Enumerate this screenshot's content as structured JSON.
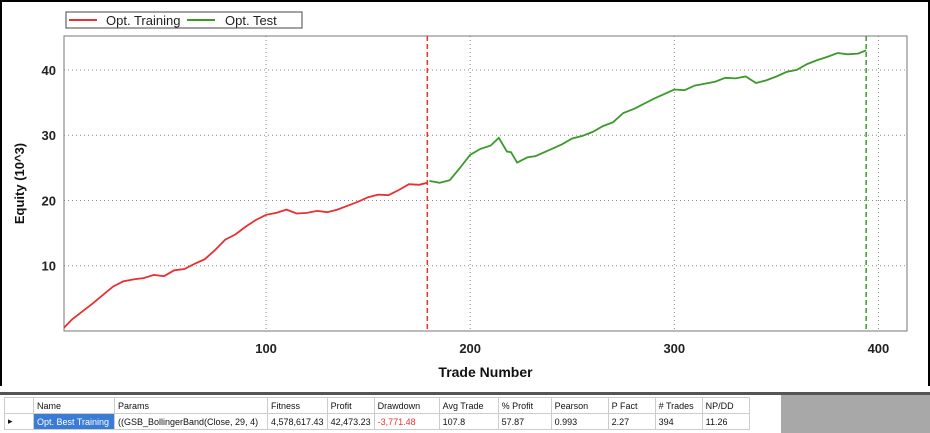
{
  "chart_data": {
    "type": "line",
    "xlabel": "Trade Number",
    "ylabel": "Equity (10^3)",
    "xlim": [
      1,
      414
    ],
    "ylim": [
      0,
      45.2
    ],
    "xticks": [
      100,
      200,
      300,
      400
    ],
    "yticks": [
      10,
      20,
      30,
      40
    ],
    "grid": true,
    "legend": "top-left",
    "series": [
      {
        "name": "Opt. Training",
        "color": "#e83030",
        "x": [
          1,
          5,
          10,
          15,
          20,
          25,
          30,
          35,
          40,
          45,
          50,
          55,
          60,
          65,
          70,
          75,
          80,
          85,
          90,
          95,
          100,
          105,
          110,
          115,
          120,
          125,
          130,
          135,
          140,
          145,
          150,
          155,
          160,
          165,
          170,
          175,
          179
        ],
        "y": [
          0.5,
          1.8,
          3,
          4.2,
          5.5,
          6.8,
          7.6,
          7.9,
          8.1,
          8.6,
          8.4,
          9.3,
          9.5,
          10.3,
          11,
          12.4,
          14,
          14.8,
          16,
          17,
          17.8,
          18.1,
          18.6,
          18,
          18.1,
          18.4,
          18.2,
          18.6,
          19.2,
          19.8,
          20.5,
          20.9,
          20.8,
          21.6,
          22.5,
          22.4,
          22.7
        ]
      },
      {
        "name": "Opt. Test",
        "color": "#3a9a2a",
        "x": [
          180,
          185,
          190,
          195,
          200,
          205,
          210,
          214,
          218,
          220,
          223,
          228,
          232,
          240,
          245,
          250,
          255,
          260,
          265,
          270,
          275,
          280,
          290,
          300,
          305,
          310,
          320,
          325,
          330,
          335,
          340,
          345,
          350,
          355,
          360,
          365,
          370,
          375,
          380,
          385,
          390,
          394
        ],
        "y": [
          23,
          22.7,
          23.1,
          25,
          27,
          27.9,
          28.4,
          29.6,
          27.5,
          27.4,
          25.8,
          26.6,
          26.8,
          27.9,
          28.6,
          29.5,
          29.9,
          30.5,
          31.4,
          32,
          33.4,
          34,
          35.6,
          37,
          36.9,
          37.6,
          38.2,
          38.8,
          38.7,
          39,
          38,
          38.4,
          39,
          39.7,
          40,
          40.9,
          41.5,
          42,
          42.6,
          42.4,
          42.5,
          43
        ]
      }
    ],
    "markers": [
      {
        "x": 179,
        "color": "#e83030"
      },
      {
        "x": 394,
        "color": "#3a9a2a"
      }
    ]
  },
  "table": {
    "headers": [
      "Name",
      "Params",
      "Fitness",
      "Profit",
      "Drawdown",
      "Avg Trade",
      "% Profit",
      "Pearson",
      "P Fact",
      "# Trades",
      "NP/DD"
    ],
    "row": [
      "Opt. Best Training",
      "((GSB_BollingerBand(Close, 29, 4)",
      "4,578,617.43",
      "42,473.23",
      "-3,771.48",
      "107.8",
      "57.87",
      "0.993",
      "2.27",
      "394",
      "11.26"
    ]
  }
}
